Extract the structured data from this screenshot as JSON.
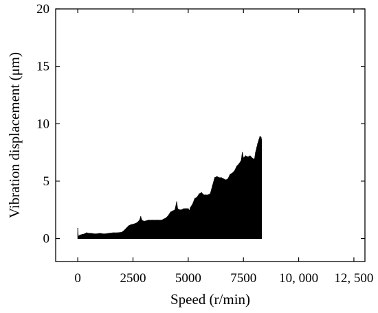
{
  "chart_data": {
    "type": "area",
    "title": "",
    "xlabel": "Speed (r/min)",
    "ylabel": "Vibration displacement (μm)",
    "xlim": [
      -1000,
      13000
    ],
    "ylim": [
      -2,
      20
    ],
    "xticks": [
      0,
      2500,
      5000,
      7500,
      10000,
      12500
    ],
    "xtick_labels": [
      "0",
      "2500",
      "5000",
      "7500",
      "10, 000",
      "12, 500"
    ],
    "yticks": [
      0,
      5,
      10,
      15,
      20
    ],
    "ytick_labels": [
      "0",
      "5",
      "10",
      "15",
      "20"
    ],
    "grid": false,
    "legend": "none",
    "fill_color": "#000000",
    "series": [
      {
        "x": [
          0,
          20,
          40,
          100,
          200,
          300,
          400,
          500,
          600,
          800,
          1000,
          1200,
          1400,
          1600,
          1800,
          2000,
          2100,
          2200,
          2300,
          2400,
          2500,
          2600,
          2700,
          2750,
          2800,
          2850,
          2900,
          3000,
          3200,
          3400,
          3600,
          3800,
          3900,
          4000,
          4100,
          4200,
          4300,
          4400,
          4480,
          4520,
          4600,
          4700,
          4800,
          4900,
          5000,
          5050,
          5100,
          5200,
          5300,
          5400,
          5500,
          5600,
          5700,
          5800,
          5900,
          6000,
          6100,
          6200,
          6300,
          6400,
          6500,
          6600,
          6700,
          6800,
          6900,
          7000,
          7100,
          7200,
          7300,
          7400,
          7450,
          7500,
          7600,
          7700,
          7800,
          7900,
          8000,
          8050,
          8100,
          8150,
          8200,
          8250,
          8300,
          8320
        ],
        "y": [
          0.9,
          0.25,
          0.2,
          0.3,
          0.35,
          0.4,
          0.5,
          0.45,
          0.45,
          0.4,
          0.45,
          0.4,
          0.45,
          0.5,
          0.5,
          0.55,
          0.7,
          0.9,
          1.1,
          1.2,
          1.25,
          1.3,
          1.4,
          1.5,
          1.6,
          1.9,
          1.6,
          1.5,
          1.6,
          1.6,
          1.6,
          1.6,
          1.7,
          1.8,
          2.0,
          2.3,
          2.4,
          2.5,
          3.2,
          2.6,
          2.5,
          2.5,
          2.6,
          2.6,
          2.6,
          2.4,
          2.7,
          3.0,
          3.5,
          3.6,
          3.9,
          4.0,
          3.8,
          3.8,
          3.8,
          3.9,
          4.6,
          5.3,
          5.4,
          5.3,
          5.3,
          5.2,
          5.1,
          5.2,
          5.6,
          5.7,
          5.9,
          6.3,
          6.5,
          6.8,
          7.5,
          7.0,
          7.2,
          7.1,
          7.2,
          7.0,
          6.9,
          7.5,
          7.9,
          8.3,
          8.6,
          8.9,
          8.8,
          8.6
        ]
      }
    ]
  }
}
